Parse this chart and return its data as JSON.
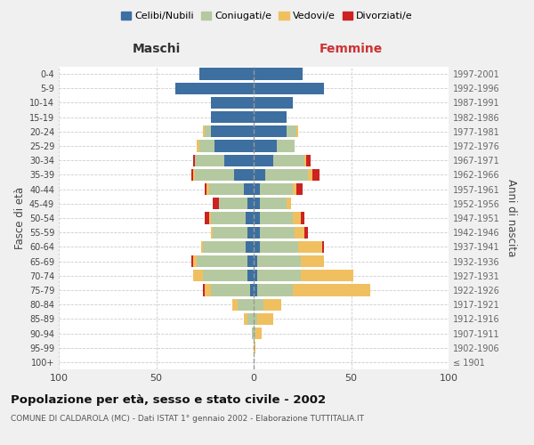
{
  "age_groups": [
    "100+",
    "95-99",
    "90-94",
    "85-89",
    "80-84",
    "75-79",
    "70-74",
    "65-69",
    "60-64",
    "55-59",
    "50-54",
    "45-49",
    "40-44",
    "35-39",
    "30-34",
    "25-29",
    "20-24",
    "15-19",
    "10-14",
    "5-9",
    "0-4"
  ],
  "birth_years": [
    "≤ 1901",
    "1902-1906",
    "1907-1911",
    "1912-1916",
    "1917-1921",
    "1922-1926",
    "1927-1931",
    "1932-1936",
    "1937-1941",
    "1942-1946",
    "1947-1951",
    "1952-1956",
    "1957-1961",
    "1962-1966",
    "1967-1971",
    "1972-1976",
    "1977-1981",
    "1982-1986",
    "1987-1991",
    "1992-1996",
    "1997-2001"
  ],
  "males": {
    "celibi": [
      0,
      0,
      0,
      0,
      0,
      2,
      3,
      3,
      4,
      3,
      4,
      3,
      5,
      10,
      15,
      20,
      22,
      22,
      22,
      40,
      28
    ],
    "coniugati": [
      0,
      0,
      1,
      3,
      8,
      20,
      23,
      26,
      22,
      18,
      18,
      15,
      18,
      20,
      15,
      8,
      3,
      0,
      0,
      0,
      0
    ],
    "vedovi": [
      0,
      0,
      0,
      2,
      3,
      3,
      5,
      2,
      1,
      1,
      1,
      0,
      1,
      1,
      0,
      1,
      1,
      0,
      0,
      0,
      0
    ],
    "divorziati": [
      0,
      0,
      0,
      0,
      0,
      1,
      0,
      1,
      0,
      0,
      2,
      3,
      1,
      1,
      1,
      0,
      0,
      0,
      0,
      0,
      0
    ]
  },
  "females": {
    "nubili": [
      0,
      0,
      0,
      0,
      0,
      2,
      2,
      2,
      3,
      3,
      3,
      3,
      3,
      6,
      10,
      12,
      17,
      17,
      20,
      36,
      25
    ],
    "coniugate": [
      0,
      0,
      1,
      2,
      5,
      18,
      22,
      22,
      20,
      18,
      17,
      14,
      17,
      22,
      16,
      9,
      5,
      0,
      0,
      0,
      0
    ],
    "vedove": [
      0,
      1,
      3,
      8,
      9,
      40,
      27,
      12,
      12,
      5,
      4,
      2,
      2,
      2,
      1,
      0,
      1,
      0,
      0,
      0,
      0
    ],
    "divorziate": [
      0,
      0,
      0,
      0,
      0,
      0,
      0,
      0,
      1,
      2,
      2,
      0,
      3,
      4,
      2,
      0,
      0,
      0,
      0,
      0,
      0
    ]
  },
  "colors": {
    "celibi_nubili": "#3d6fa0",
    "coniugati": "#b5c9a0",
    "vedovi": "#f0c060",
    "divorziati": "#cc2222"
  },
  "xlim": 100,
  "title": "Popolazione per età, sesso e stato civile - 2002",
  "subtitle": "COMUNE DI CALDAROLA (MC) - Dati ISTAT 1° gennaio 2002 - Elaborazione TUTTITALIA.IT",
  "xlabel_left": "Maschi",
  "xlabel_right": "Femmine",
  "ylabel_left": "Fasce di età",
  "ylabel_right": "Anni di nascita",
  "bg_color": "#f0f0f0",
  "plot_bg": "#ffffff"
}
